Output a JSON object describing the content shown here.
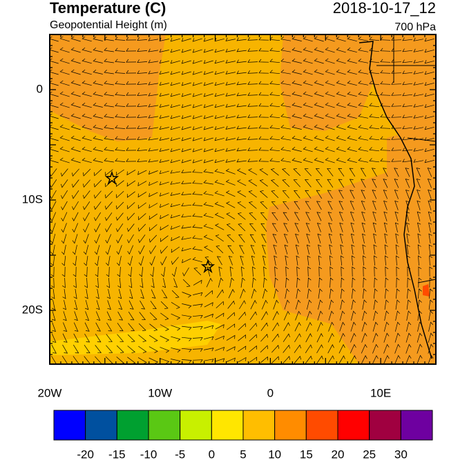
{
  "header": {
    "title": "Temperature (C)",
    "subtitle": "Geopotential Height (m)",
    "date": "2018-10-17_12",
    "level": "700 hPa"
  },
  "axes": {
    "lat_labels": [
      "0",
      "10S",
      "20S"
    ],
    "lon_labels": [
      "20W",
      "10W",
      "0",
      "10E"
    ]
  },
  "colorbar": {
    "colors": [
      "#0000ff",
      "#00509f",
      "#00a030",
      "#5ac814",
      "#c8f000",
      "#ffe600",
      "#ffbe00",
      "#ff8c00",
      "#ff4b00",
      "#ff0000",
      "#a00040",
      "#6e00a0"
    ],
    "labels": [
      "-20",
      "-15",
      "-10",
      "-5",
      "0",
      "5",
      "10",
      "15",
      "20",
      "25",
      "30"
    ]
  }
}
